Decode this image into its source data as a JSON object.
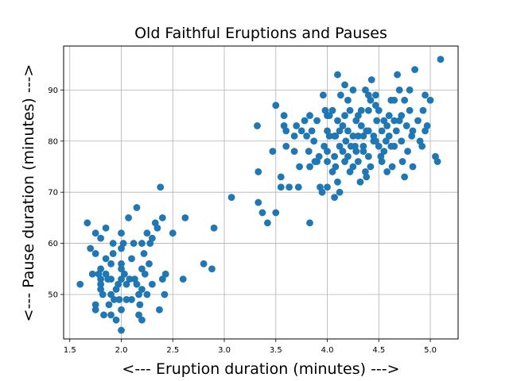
{
  "chart_data": {
    "type": "scatter",
    "title": "Old Faithful Eruptions and Pauses",
    "xlabel": "<--- Eruption duration (minutes) --->",
    "ylabel": "<--- Pause duration (minutes) --->",
    "xlim": [
      1.44,
      5.27
    ],
    "ylim": [
      41.3,
      98.6
    ],
    "xticks": [
      1.5,
      2.0,
      2.5,
      3.0,
      3.5,
      4.0,
      4.5,
      5.0
    ],
    "xtick_labels": [
      "1.5",
      "2.0",
      "2.5",
      "3.0",
      "3.5",
      "4.0",
      "4.5",
      "5.0"
    ],
    "yticks": [
      50,
      60,
      70,
      80,
      90
    ],
    "ytick_labels": [
      "50",
      "60",
      "70",
      "80",
      "90"
    ],
    "grid": true,
    "marker_color": "#1f77b4",
    "points": [
      [
        1.6,
        52
      ],
      [
        1.67,
        64
      ],
      [
        1.7,
        59
      ],
      [
        1.72,
        54
      ],
      [
        1.75,
        62
      ],
      [
        1.75,
        58
      ],
      [
        1.75,
        48
      ],
      [
        1.75,
        47
      ],
      [
        1.78,
        54
      ],
      [
        1.8,
        61
      ],
      [
        1.8,
        55
      ],
      [
        1.8,
        53
      ],
      [
        1.8,
        52
      ],
      [
        1.8,
        51
      ],
      [
        1.82,
        50
      ],
      [
        1.83,
        46
      ],
      [
        1.85,
        63
      ],
      [
        1.85,
        57
      ],
      [
        1.85,
        54
      ],
      [
        1.87,
        53
      ],
      [
        1.88,
        48
      ],
      [
        1.9,
        56
      ],
      [
        1.9,
        53
      ],
      [
        1.9,
        50
      ],
      [
        1.9,
        46
      ],
      [
        1.92,
        60
      ],
      [
        1.92,
        58
      ],
      [
        1.93,
        49
      ],
      [
        1.95,
        51
      ],
      [
        1.95,
        45
      ],
      [
        1.97,
        52
      ],
      [
        1.98,
        49
      ],
      [
        2.0,
        62
      ],
      [
        2.0,
        59
      ],
      [
        2.0,
        56
      ],
      [
        2.0,
        55
      ],
      [
        2.0,
        53
      ],
      [
        2.0,
        47
      ],
      [
        2.0,
        43
      ],
      [
        2.02,
        60
      ],
      [
        2.03,
        54
      ],
      [
        2.05,
        52
      ],
      [
        2.05,
        49
      ],
      [
        2.07,
        65
      ],
      [
        2.08,
        53
      ],
      [
        2.1,
        57
      ],
      [
        2.1,
        49
      ],
      [
        2.12,
        60
      ],
      [
        2.13,
        53
      ],
      [
        2.15,
        67
      ],
      [
        2.15,
        52
      ],
      [
        2.17,
        50
      ],
      [
        2.17,
        46
      ],
      [
        2.18,
        48
      ],
      [
        2.2,
        60
      ],
      [
        2.2,
        55
      ],
      [
        2.2,
        51
      ],
      [
        2.2,
        45
      ],
      [
        2.22,
        58
      ],
      [
        2.23,
        54
      ],
      [
        2.25,
        62
      ],
      [
        2.25,
        50
      ],
      [
        2.27,
        56
      ],
      [
        2.28,
        60
      ],
      [
        2.3,
        61
      ],
      [
        2.3,
        52
      ],
      [
        2.33,
        64
      ],
      [
        2.35,
        63
      ],
      [
        2.37,
        47
      ],
      [
        2.38,
        71
      ],
      [
        2.4,
        65
      ],
      [
        2.4,
        53
      ],
      [
        2.42,
        50
      ],
      [
        2.43,
        54
      ],
      [
        2.5,
        62
      ],
      [
        2.6,
        53
      ],
      [
        2.62,
        65
      ],
      [
        2.8,
        56
      ],
      [
        2.88,
        55
      ],
      [
        2.9,
        63
      ],
      [
        3.07,
        69
      ],
      [
        3.32,
        83
      ],
      [
        3.33,
        74
      ],
      [
        3.33,
        68
      ],
      [
        3.37,
        66
      ],
      [
        3.42,
        64
      ],
      [
        3.47,
        78
      ],
      [
        3.5,
        87
      ],
      [
        3.5,
        66
      ],
      [
        3.55,
        73
      ],
      [
        3.55,
        71
      ],
      [
        3.58,
        85
      ],
      [
        3.58,
        83
      ],
      [
        3.6,
        82
      ],
      [
        3.6,
        79
      ],
      [
        3.63,
        71
      ],
      [
        3.68,
        81
      ],
      [
        3.7,
        83
      ],
      [
        3.72,
        71
      ],
      [
        3.73,
        75
      ],
      [
        3.75,
        82
      ],
      [
        3.78,
        84
      ],
      [
        3.8,
        81
      ],
      [
        3.82,
        78
      ],
      [
        3.83,
        85
      ],
      [
        3.83,
        75
      ],
      [
        3.83,
        64
      ],
      [
        3.85,
        82
      ],
      [
        3.87,
        80
      ],
      [
        3.88,
        76
      ],
      [
        3.9,
        84
      ],
      [
        3.92,
        77
      ],
      [
        3.93,
        71
      ],
      [
        3.95,
        70
      ],
      [
        3.96,
        89
      ],
      [
        3.97,
        79
      ],
      [
        3.98,
        86
      ],
      [
        4.0,
        85
      ],
      [
        4.0,
        82
      ],
      [
        4.0,
        78
      ],
      [
        4.0,
        76
      ],
      [
        4.0,
        71
      ],
      [
        4.02,
        81
      ],
      [
        4.05,
        74
      ],
      [
        4.07,
        77
      ],
      [
        4.07,
        69
      ],
      [
        4.08,
        81
      ],
      [
        4.08,
        75
      ],
      [
        4.1,
        93
      ],
      [
        4.1,
        84
      ],
      [
        4.1,
        72
      ],
      [
        4.12,
        79
      ],
      [
        4.12,
        70
      ],
      [
        4.13,
        89
      ],
      [
        4.15,
        83
      ],
      [
        4.15,
        78
      ],
      [
        4.17,
        91
      ],
      [
        4.17,
        85
      ],
      [
        4.17,
        76
      ],
      [
        4.18,
        80
      ],
      [
        4.2,
        88
      ],
      [
        4.2,
        82
      ],
      [
        4.2,
        77
      ],
      [
        4.22,
        86
      ],
      [
        4.22,
        74
      ],
      [
        4.25,
        81
      ],
      [
        4.25,
        75
      ],
      [
        4.27,
        79
      ],
      [
        4.28,
        78
      ],
      [
        4.3,
        85
      ],
      [
        4.3,
        81
      ],
      [
        4.3,
        76
      ],
      [
        4.32,
        72
      ],
      [
        4.33,
        83
      ],
      [
        4.35,
        81
      ],
      [
        4.35,
        79
      ],
      [
        4.35,
        78
      ],
      [
        4.37,
        90
      ],
      [
        4.37,
        74
      ],
      [
        4.38,
        82
      ],
      [
        4.4,
        89
      ],
      [
        4.4,
        86
      ],
      [
        4.4,
        82
      ],
      [
        4.4,
        77
      ],
      [
        4.42,
        75
      ],
      [
        4.43,
        92
      ],
      [
        4.45,
        81
      ],
      [
        4.45,
        80
      ],
      [
        4.47,
        89
      ],
      [
        4.47,
        87
      ],
      [
        4.48,
        84
      ],
      [
        4.5,
        79
      ],
      [
        4.52,
        77
      ],
      [
        4.53,
        82
      ],
      [
        4.53,
        76
      ],
      [
        4.55,
        84
      ],
      [
        4.57,
        80
      ],
      [
        4.58,
        74
      ],
      [
        4.6,
        85
      ],
      [
        4.6,
        81
      ],
      [
        4.62,
        79
      ],
      [
        4.63,
        75
      ],
      [
        4.65,
        88
      ],
      [
        4.65,
        84
      ],
      [
        4.67,
        82
      ],
      [
        4.68,
        93
      ],
      [
        4.7,
        90
      ],
      [
        4.7,
        84
      ],
      [
        4.72,
        80
      ],
      [
        4.73,
        76
      ],
      [
        4.75,
        73
      ],
      [
        4.75,
        88
      ],
      [
        4.77,
        83
      ],
      [
        4.78,
        78
      ],
      [
        4.8,
        90
      ],
      [
        4.8,
        86
      ],
      [
        4.82,
        81
      ],
      [
        4.83,
        75
      ],
      [
        4.85,
        94
      ],
      [
        4.88,
        84
      ],
      [
        4.9,
        80
      ],
      [
        4.93,
        86
      ],
      [
        4.95,
        89
      ],
      [
        4.97,
        83
      ],
      [
        5.0,
        88
      ],
      [
        5.05,
        77
      ],
      [
        5.07,
        76
      ],
      [
        5.1,
        96
      ],
      [
        4.05,
        86
      ],
      [
        4.25,
        90
      ],
      [
        4.33,
        86
      ],
      [
        4.42,
        88
      ],
      [
        4.12,
        82
      ],
      [
        4.02,
        85
      ],
      [
        3.68,
        78
      ],
      [
        3.9,
        76
      ],
      [
        4.58,
        83
      ],
      [
        4.5,
        86
      ],
      [
        4.62,
        88
      ],
      [
        4.92,
        79
      ],
      [
        4.28,
        84
      ],
      [
        4.47,
        80
      ],
      [
        4.38,
        73
      ],
      [
        4.72,
        85
      ],
      [
        4.83,
        82
      ],
      [
        4.07,
        81
      ],
      [
        4.23,
        79
      ],
      [
        4.55,
        78
      ],
      [
        4.65,
        79
      ],
      [
        4.95,
        82
      ]
    ]
  }
}
